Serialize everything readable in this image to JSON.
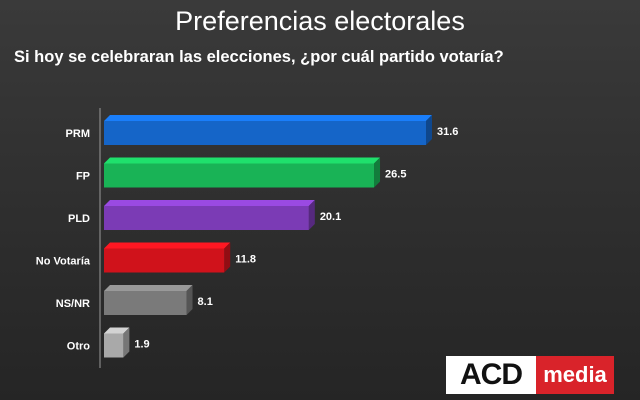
{
  "chart_data": {
    "type": "bar",
    "orientation": "horizontal",
    "title": "Preferencias electorales",
    "subtitle": "Si hoy se celebraran las elecciones, ¿por cuál partido votaría?",
    "categories": [
      "PRM",
      "FP",
      "PLD",
      "No Votaría",
      "NS/NR",
      "Otro"
    ],
    "values": [
      31.6,
      26.5,
      20.1,
      11.8,
      8.1,
      1.9
    ],
    "value_labels": [
      "31.6",
      "26.5",
      "20.1",
      "11.8",
      "8.1",
      "1.9"
    ],
    "colors": [
      "#1565c8",
      "#19b356",
      "#7b3bb5",
      "#d0121b",
      "#7a7a7a",
      "#a9a9a9"
    ],
    "xlim": [
      0,
      31.6
    ],
    "grid": false,
    "legend": "none"
  },
  "logo": {
    "acd": "ACD",
    "media": "media"
  }
}
